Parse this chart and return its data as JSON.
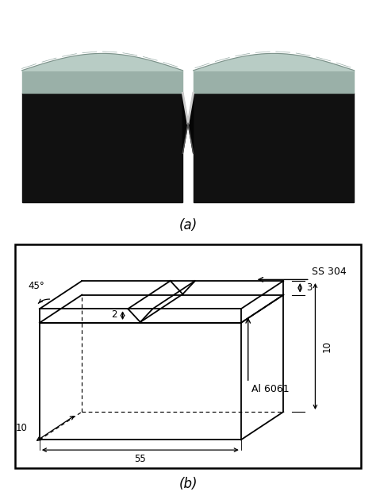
{
  "fig_width": 4.74,
  "fig_height": 6.34,
  "dpi": 100,
  "bg_color": "#ffffff",
  "label_a": "(a)",
  "label_b": "(b)",
  "photo_bg": "#8B0000",
  "drawing_bg": "#ffffff",
  "drawing_line_color": "#000000",
  "dim_notch_depth": "2",
  "dim_length": "55",
  "dim_width": "10",
  "dim_ss_thick": "3",
  "dim_total_height": "10",
  "dim_angle": "45°",
  "label_ss": "SS 304",
  "label_al": "Al 6061"
}
